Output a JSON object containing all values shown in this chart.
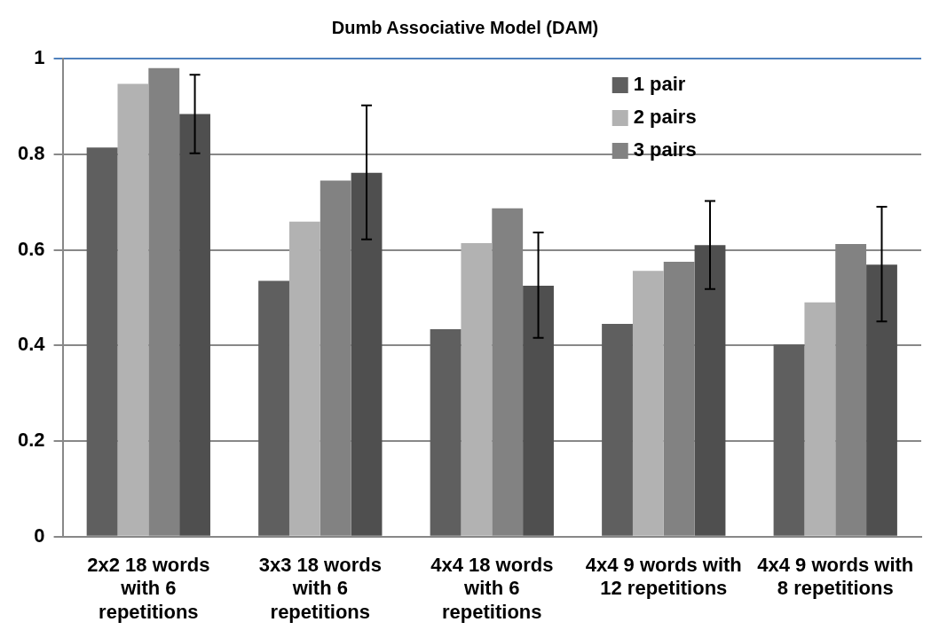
{
  "chart_data": {
    "type": "bar",
    "title": "Dumb Associative Model (DAM)",
    "categories": [
      "2x2 18 words with 6 repetitions",
      "3x3 18 words with 6 repetitions",
      "4x4 18 words with 6 repetitions",
      "4x4 9 words with 12 repetitions",
      "4x4 9 words with 8 repetitions"
    ],
    "series": [
      {
        "name": "1 pair",
        "color": "#5f5f5f",
        "values": [
          0.814,
          0.535,
          0.434,
          0.445,
          0.402
        ]
      },
      {
        "name": "2 pairs",
        "color": "#b2b2b2",
        "values": [
          0.947,
          0.659,
          0.614,
          0.556,
          0.49
        ]
      },
      {
        "name": "3 pairs",
        "color": "#828282",
        "values": [
          0.98,
          0.745,
          0.687,
          0.575,
          0.612
        ]
      },
      {
        "color": "#4f4f4f",
        "values": [
          0.884,
          0.761,
          0.525,
          0.61,
          0.569
        ],
        "errors": [
          [
            0.802,
            0.966
          ],
          [
            0.622,
            0.902
          ],
          [
            0.416,
            0.636
          ],
          [
            0.518,
            0.702
          ],
          [
            0.45,
            0.69
          ]
        ]
      }
    ],
    "ylim": [
      0,
      1
    ],
    "yticks": [
      0,
      0.2,
      0.4,
      0.6,
      0.8,
      1
    ],
    "grid": "y",
    "legend": "top right"
  }
}
